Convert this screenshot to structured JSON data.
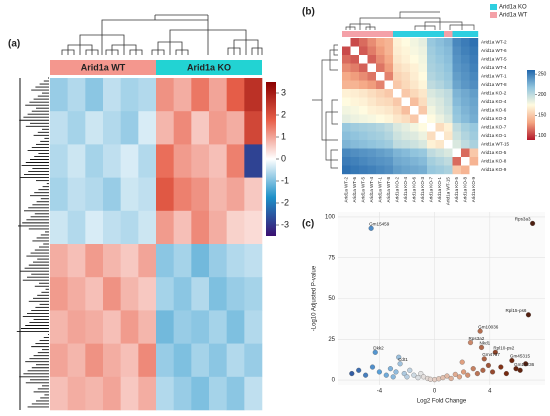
{
  "chart_data": [
    {
      "type": "heatmap",
      "panel": "(a)",
      "groups": [
        {
          "name": "Arid1a WT",
          "color": "#f4978e"
        },
        {
          "name": "Arid1a KO",
          "color": "#22d3d3"
        }
      ],
      "values": [
        [
          -0.8,
          -0.6,
          -0.9,
          -0.5,
          -0.7,
          -0.6,
          1.2,
          0.9,
          1.5,
          1.0,
          1.8,
          2.6
        ],
        [
          -0.5,
          -0.7,
          -0.4,
          -0.6,
          -0.8,
          -0.3,
          0.8,
          1.3,
          0.6,
          1.1,
          0.9,
          2.2
        ],
        [
          -0.6,
          -0.4,
          -0.7,
          -0.5,
          -0.3,
          -0.6,
          1.6,
          1.1,
          0.9,
          0.7,
          1.4,
          -2.8
        ],
        [
          -0.7,
          -0.5,
          -0.6,
          -0.8,
          -0.4,
          -0.5,
          1.9,
          1.4,
          1.2,
          0.8,
          1.0,
          0.6
        ],
        [
          -0.4,
          -0.6,
          -0.3,
          -0.5,
          -0.6,
          -0.4,
          1.1,
          0.7,
          1.3,
          0.9,
          0.5,
          0.4
        ],
        [
          0.9,
          0.7,
          1.1,
          0.8,
          0.6,
          1.0,
          -0.9,
          -0.7,
          -1.1,
          -0.8,
          -0.6,
          -0.5
        ],
        [
          1.1,
          0.9,
          0.7,
          1.2,
          0.8,
          0.6,
          -0.7,
          -0.9,
          -0.6,
          -1.0,
          -0.8,
          -0.7
        ],
        [
          0.8,
          1.0,
          0.9,
          0.7,
          1.1,
          0.8,
          -1.1,
          -0.8,
          -0.9,
          -0.7,
          -1.0,
          -0.6
        ],
        [
          1.0,
          0.8,
          1.2,
          0.9,
          0.7,
          1.3,
          -0.8,
          -1.0,
          -0.7,
          -0.9,
          -0.6,
          -0.8
        ],
        [
          0.7,
          0.9,
          0.8,
          1.0,
          0.6,
          0.9,
          -0.6,
          -0.8,
          -1.0,
          -0.7,
          -0.9,
          -0.5
        ]
      ],
      "zlim": [
        -3.5,
        3.5
      ],
      "colors": [
        "#3b0f70",
        "#1e90c8",
        "#ffffff",
        "#e8604a",
        "#8b0000"
      ],
      "colorbar_ticks": [
        3,
        2,
        1,
        0,
        -1,
        -2,
        -3
      ]
    },
    {
      "type": "correlation",
      "panel": "(b)",
      "labels": [
        "Arid1a WT-2",
        "Arid1a WT-6",
        "Arid1a WT-5",
        "Arid1a WT-4",
        "Arid1a WT-1",
        "Arid1a WT-8",
        "Arid1a KO-2",
        "Arid1a KO-4",
        "Arid1a KO-6",
        "Arid1a KO-3",
        "Arid1a KO-7",
        "Arid1a KO-1",
        "Arid1a WT-15",
        "Arid1a KO-5",
        "Arid1a KO-8",
        "Arid1a KO-9"
      ],
      "values": [
        [
          null,
          105,
          115,
          125,
          135,
          140,
          170,
          175,
          180,
          185,
          215,
          220,
          225,
          245,
          250,
          255
        ],
        [
          105,
          null,
          110,
          120,
          130,
          140,
          168,
          172,
          178,
          182,
          212,
          218,
          222,
          242,
          248,
          252
        ],
        [
          115,
          110,
          null,
          112,
          125,
          135,
          165,
          170,
          175,
          180,
          210,
          215,
          220,
          240,
          245,
          250
        ],
        [
          125,
          120,
          112,
          null,
          118,
          130,
          160,
          165,
          170,
          178,
          208,
          212,
          218,
          238,
          242,
          248
        ],
        [
          135,
          130,
          125,
          118,
          null,
          122,
          155,
          160,
          168,
          175,
          205,
          210,
          215,
          235,
          240,
          245
        ],
        [
          140,
          140,
          135,
          130,
          122,
          null,
          150,
          158,
          165,
          172,
          200,
          205,
          212,
          232,
          238,
          242
        ],
        [
          170,
          168,
          165,
          160,
          155,
          150,
          null,
          150,
          158,
          165,
          190,
          195,
          200,
          225,
          230,
          235
        ],
        [
          175,
          172,
          170,
          165,
          160,
          158,
          150,
          null,
          145,
          160,
          185,
          190,
          198,
          222,
          228,
          232
        ],
        [
          180,
          178,
          175,
          170,
          168,
          165,
          158,
          145,
          null,
          150,
          180,
          188,
          195,
          218,
          225,
          230
        ],
        [
          185,
          182,
          180,
          178,
          175,
          172,
          165,
          160,
          150,
          null,
          175,
          182,
          190,
          215,
          222,
          228
        ],
        [
          215,
          212,
          210,
          208,
          205,
          200,
          190,
          185,
          180,
          175,
          null,
          160,
          170,
          200,
          210,
          215
        ],
        [
          220,
          218,
          215,
          212,
          210,
          205,
          195,
          190,
          188,
          182,
          160,
          null,
          165,
          195,
          205,
          212
        ],
        [
          225,
          222,
          220,
          218,
          215,
          212,
          200,
          198,
          195,
          190,
          170,
          165,
          null,
          190,
          200,
          208
        ],
        [
          245,
          242,
          240,
          238,
          235,
          232,
          225,
          222,
          218,
          215,
          200,
          195,
          190,
          null,
          115,
          150
        ],
        [
          250,
          248,
          245,
          242,
          240,
          238,
          230,
          228,
          225,
          222,
          210,
          205,
          200,
          115,
          null,
          140
        ],
        [
          255,
          252,
          250,
          248,
          245,
          242,
          235,
          232,
          230,
          228,
          215,
          212,
          208,
          150,
          140,
          null
        ]
      ],
      "zlim": [
        90,
        260
      ],
      "colors": [
        "#b2182b",
        "#f4a582",
        "#fffbe0",
        "#92c5de",
        "#2166ac"
      ],
      "colorbar_ticks": [
        250,
        200,
        150,
        100
      ],
      "legend": [
        {
          "name": "Arid1a KO",
          "color": "#2ecfe0"
        },
        {
          "name": "Arid1a WT",
          "color": "#f4a1a8"
        }
      ]
    },
    {
      "type": "scatter",
      "panel": "(c)",
      "x_label": "Log2 Fold Change",
      "y_label": "-Log10 Adjusted P-value",
      "x": [
        -4.6,
        7.1,
        6.8,
        3.3,
        2.6,
        3.4,
        4.4,
        3.6,
        5.6,
        5.9,
        -4.3,
        -2.5,
        -6.0,
        -5.5,
        -5.0,
        -4.5,
        -4.0,
        -3.5,
        -3.2,
        -3.0,
        -2.8,
        -2.2,
        -2.0,
        -1.8,
        -1.5,
        -1.2,
        -1.0,
        -0.8,
        -0.5,
        -0.3,
        0,
        0.3,
        0.6,
        0.9,
        1.2,
        1.5,
        1.8,
        2.1,
        2.4,
        2.8,
        3.1,
        3.5,
        3.9,
        4.2,
        4.8,
        5.2,
        6.2,
        6.6,
        -2.6,
        2.0
      ],
      "y": [
        93,
        96,
        40,
        30,
        23,
        20,
        17,
        13,
        12,
        7,
        17,
        10,
        4,
        6,
        3,
        8,
        5,
        3,
        7,
        2,
        5,
        4,
        2,
        6,
        3,
        1.5,
        4,
        2,
        1,
        0.5,
        0.3,
        0.8,
        1.5,
        2.5,
        1,
        3.5,
        2,
        5,
        3,
        7,
        4,
        6,
        9,
        5,
        8,
        4,
        6,
        10,
        14,
        11
      ],
      "labels": [
        "Gm15459",
        "Rps3a3",
        "Rpl15-ps6",
        "Gm10036",
        "Rps3a2",
        "Nkd1",
        "Rpl10-ps2",
        "Gm4737",
        "Gm45315",
        "Gm10236",
        "Dkk2",
        "Cdt1",
        null,
        null,
        null,
        null,
        null,
        null,
        null,
        null,
        null,
        null,
        null,
        null,
        null,
        null,
        null,
        null,
        null,
        null,
        null,
        null,
        null,
        null,
        null,
        null,
        null,
        null,
        null,
        null,
        null,
        null,
        null,
        null,
        null,
        null,
        null,
        null,
        null,
        null
      ],
      "xlim": [
        -7,
        8
      ],
      "ylim": [
        -3,
        103
      ],
      "xticks": [
        -4,
        0,
        4
      ],
      "yticks": [
        0,
        25,
        50,
        75,
        100
      ],
      "grid": true,
      "colors": [
        "#1f3b8a",
        "#5aa0d8",
        "#e4e4e4",
        "#e0a080",
        "#7a2a10",
        "#3a1a10"
      ]
    }
  ]
}
